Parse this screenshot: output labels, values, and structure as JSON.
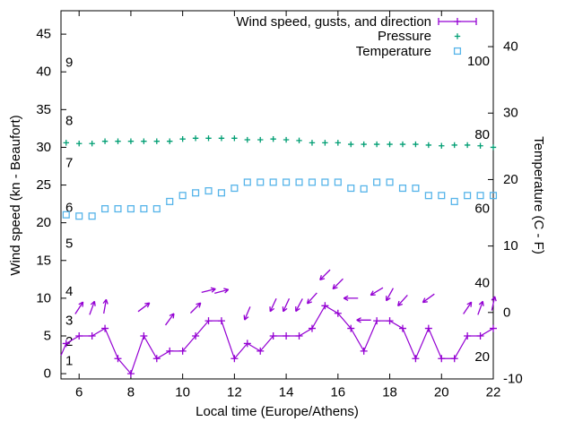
{
  "chart_data": {
    "type": "line",
    "x_label": "Local time (Europe/Athens)",
    "y_left_label": "Wind speed (kn - Beaufort)",
    "y_right_label": "Temperature (C - F)",
    "x_range": [
      5.3,
      22
    ],
    "x_ticks": [
      6,
      8,
      10,
      12,
      14,
      16,
      18,
      20,
      22
    ],
    "y_left_range_kn": [
      -0.7,
      48.1
    ],
    "y_left_ticks_kn": [
      0,
      5,
      10,
      15,
      20,
      25,
      30,
      35,
      40,
      45
    ],
    "beaufort_labels": [
      {
        "label": "1",
        "kn": 1.7
      },
      {
        "label": "2",
        "kn": 4.2
      },
      {
        "label": "3",
        "kn": 7.0
      },
      {
        "label": "4",
        "kn": 10.9
      },
      {
        "label": "5",
        "kn": 17.2
      },
      {
        "label": "6",
        "kn": 22.0
      },
      {
        "label": "7",
        "kn": 27.9
      },
      {
        "label": "8",
        "kn": 33.5
      },
      {
        "label": "9",
        "kn": 41.2
      }
    ],
    "y_right_range_c": [
      -10,
      45.4
    ],
    "y_right_ticks_c": [
      -10,
      0,
      10,
      20,
      30,
      40
    ],
    "fahrenheit_labels": [
      {
        "label": "20",
        "c": -6.7
      },
      {
        "label": "40",
        "c": 4.4
      },
      {
        "label": "60",
        "c": 15.6
      },
      {
        "label": "80",
        "c": 26.7
      },
      {
        "label": "100",
        "c": 37.8
      }
    ],
    "x": [
      5.5,
      6,
      6.5,
      7,
      7.5,
      8,
      8.5,
      9,
      9.5,
      10,
      10.5,
      11,
      11.5,
      12,
      12.5,
      13,
      13.5,
      14,
      14.5,
      15,
      15.5,
      16,
      16.5,
      17,
      17.5,
      18,
      18.5,
      19,
      19.5,
      20,
      20.5,
      21,
      21.5,
      22
    ],
    "series": [
      {
        "name": "Wind speed, gusts, and direction",
        "color": "#9400d3",
        "axis": "left",
        "marker": "plus",
        "line": true,
        "lead_in_point": {
          "x": 5.3,
          "y": 2.4
        },
        "values": [
          4,
          5,
          5,
          6,
          2,
          0,
          5,
          2,
          3,
          3,
          5,
          7,
          7,
          2,
          4,
          3,
          5,
          5,
          5,
          6,
          9,
          8,
          6,
          3,
          7,
          7,
          6,
          2,
          6,
          2,
          2,
          5,
          5,
          6
        ]
      },
      {
        "name": "Pressure",
        "color": "#009e73",
        "axis": "left",
        "marker": "plus",
        "line": false,
        "values": [
          30.6,
          30.5,
          30.5,
          30.8,
          30.8,
          30.8,
          30.8,
          30.8,
          30.8,
          31.1,
          31.2,
          31.2,
          31.2,
          31.2,
          31.0,
          31.0,
          31.1,
          31.0,
          30.9,
          30.6,
          30.6,
          30.6,
          30.4,
          30.4,
          30.4,
          30.4,
          30.4,
          30.4,
          30.3,
          30.2,
          30.3,
          30.3,
          30.2,
          30.0
        ]
      },
      {
        "name": "Temperature",
        "color": "#56b4e9",
        "axis": "right",
        "marker": "open-square",
        "line": false,
        "values": [
          14.7,
          14.5,
          14.5,
          15.6,
          15.6,
          15.6,
          15.6,
          15.6,
          16.7,
          17.6,
          18.0,
          18.3,
          18.0,
          18.7,
          19.6,
          19.6,
          19.6,
          19.6,
          19.6,
          19.6,
          19.6,
          19.6,
          18.7,
          18.6,
          19.6,
          19.6,
          18.7,
          18.7,
          17.6,
          17.6,
          16.7,
          17.6,
          17.6,
          17.6
        ]
      }
    ],
    "wind_arrows_x_kn_deg": [
      [
        6,
        8.7,
        57
      ],
      [
        6.5,
        8.7,
        70
      ],
      [
        7,
        8.9,
        80
      ],
      [
        8.5,
        8.8,
        37
      ],
      [
        9.5,
        7.2,
        54
      ],
      [
        10.5,
        8.7,
        45
      ],
      [
        11,
        11.0,
        14
      ],
      [
        11.5,
        10.9,
        15
      ],
      [
        12.5,
        8.0,
        -113
      ],
      [
        13.5,
        9.1,
        -115
      ],
      [
        14,
        9.1,
        -115
      ],
      [
        14.5,
        9.1,
        -118
      ],
      [
        15,
        10.0,
        -132
      ],
      [
        15.5,
        13.1,
        -135
      ],
      [
        16,
        11.9,
        -135
      ],
      [
        16.5,
        10.0,
        180
      ],
      [
        17,
        7.1,
        180
      ],
      [
        17.5,
        10.9,
        -149
      ],
      [
        18,
        10.5,
        -119
      ],
      [
        18.5,
        9.7,
        -132
      ],
      [
        19.5,
        10.0,
        -144
      ],
      [
        21,
        8.7,
        56
      ],
      [
        21.5,
        8.7,
        70
      ],
      [
        22,
        9.3,
        78
      ]
    ],
    "legend_position": "top-right-inside"
  },
  "colors": {
    "wind": "#9400d3",
    "pressure": "#009e73",
    "temperature": "#56b4e9",
    "axis": "#000000",
    "background": "#ffffff"
  }
}
